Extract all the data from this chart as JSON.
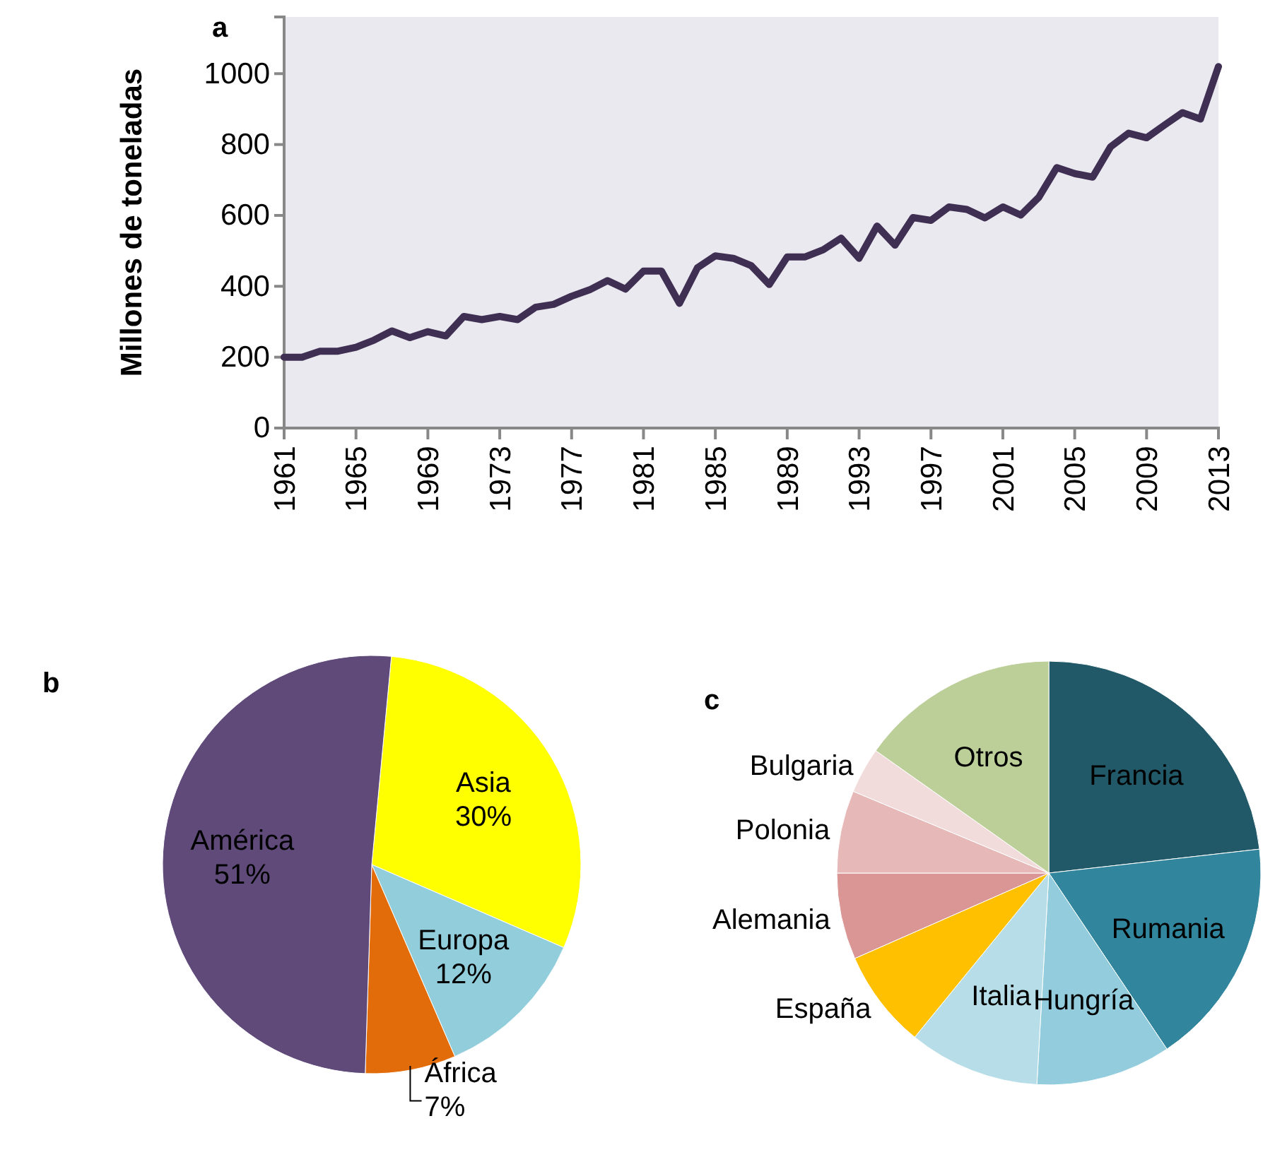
{
  "chart_data": [
    {
      "type": "line",
      "title": "a",
      "ylabel": "Millones de toneladas",
      "x": [
        1961,
        1962,
        1963,
        1964,
        1965,
        1966,
        1967,
        1968,
        1969,
        1970,
        1971,
        1972,
        1973,
        1974,
        1975,
        1976,
        1977,
        1978,
        1979,
        1980,
        1981,
        1982,
        1983,
        1984,
        1985,
        1986,
        1987,
        1988,
        1989,
        1990,
        1991,
        1992,
        1993,
        1994,
        1995,
        1996,
        1997,
        1998,
        1999,
        2000,
        2001,
        2002,
        2003,
        2004,
        2005,
        2006,
        2007,
        2008,
        2009,
        2010,
        2011,
        2012,
        2013
      ],
      "series": [
        {
          "color": "#3f2f52",
          "values": [
            200,
            200,
            217,
            217,
            228,
            248,
            274,
            255,
            272,
            260,
            315,
            306,
            315,
            306,
            341,
            349,
            372,
            390,
            416,
            392,
            443,
            443,
            352,
            452,
            486,
            479,
            458,
            405,
            483,
            483,
            503,
            536,
            479,
            570,
            516,
            594,
            586,
            624,
            617,
            593,
            624,
            601,
            651,
            735,
            718,
            708,
            794,
            832,
            819,
            855,
            890,
            872,
            1020
          ]
        }
      ],
      "xlim": [
        1961,
        2013
      ],
      "xticks": [
        1961,
        1965,
        1969,
        1973,
        1977,
        1981,
        1985,
        1989,
        1993,
        1997,
        2001,
        2005,
        2009,
        2013
      ],
      "ylim": [
        0,
        1160
      ],
      "yticks": [
        0,
        200,
        400,
        600,
        800,
        1000
      ],
      "grid": false,
      "marker": "none",
      "line_style": "solid"
    },
    {
      "type": "pie",
      "title": "b",
      "categories": [
        "Asia",
        "Europa",
        "África",
        "América"
      ],
      "values": [
        30,
        12,
        7,
        51
      ],
      "colors": [
        "#ffff00",
        "#92cddc",
        "#e36c0a",
        "#5f4a7a"
      ],
      "value_labels": [
        "30%",
        "12%",
        "7%",
        "51%"
      ]
    },
    {
      "type": "pie",
      "title": "c",
      "categories": [
        "Francia",
        "Rumania",
        "Hungría",
        "Italia",
        "España",
        "Alemania",
        "Polonia",
        "Bulgaria",
        "Otros"
      ],
      "values": [
        23.2,
        17.4,
        10.3,
        10.0,
        7.5,
        6.6,
        6.3,
        3.5,
        15.2
      ],
      "colors": [
        "#215968",
        "#31859c",
        "#93cddd",
        "#b7dee8",
        "#ffc000",
        "#d99694",
        "#e6b9b8",
        "#f2dcdb",
        "#bccf99"
      ]
    }
  ]
}
